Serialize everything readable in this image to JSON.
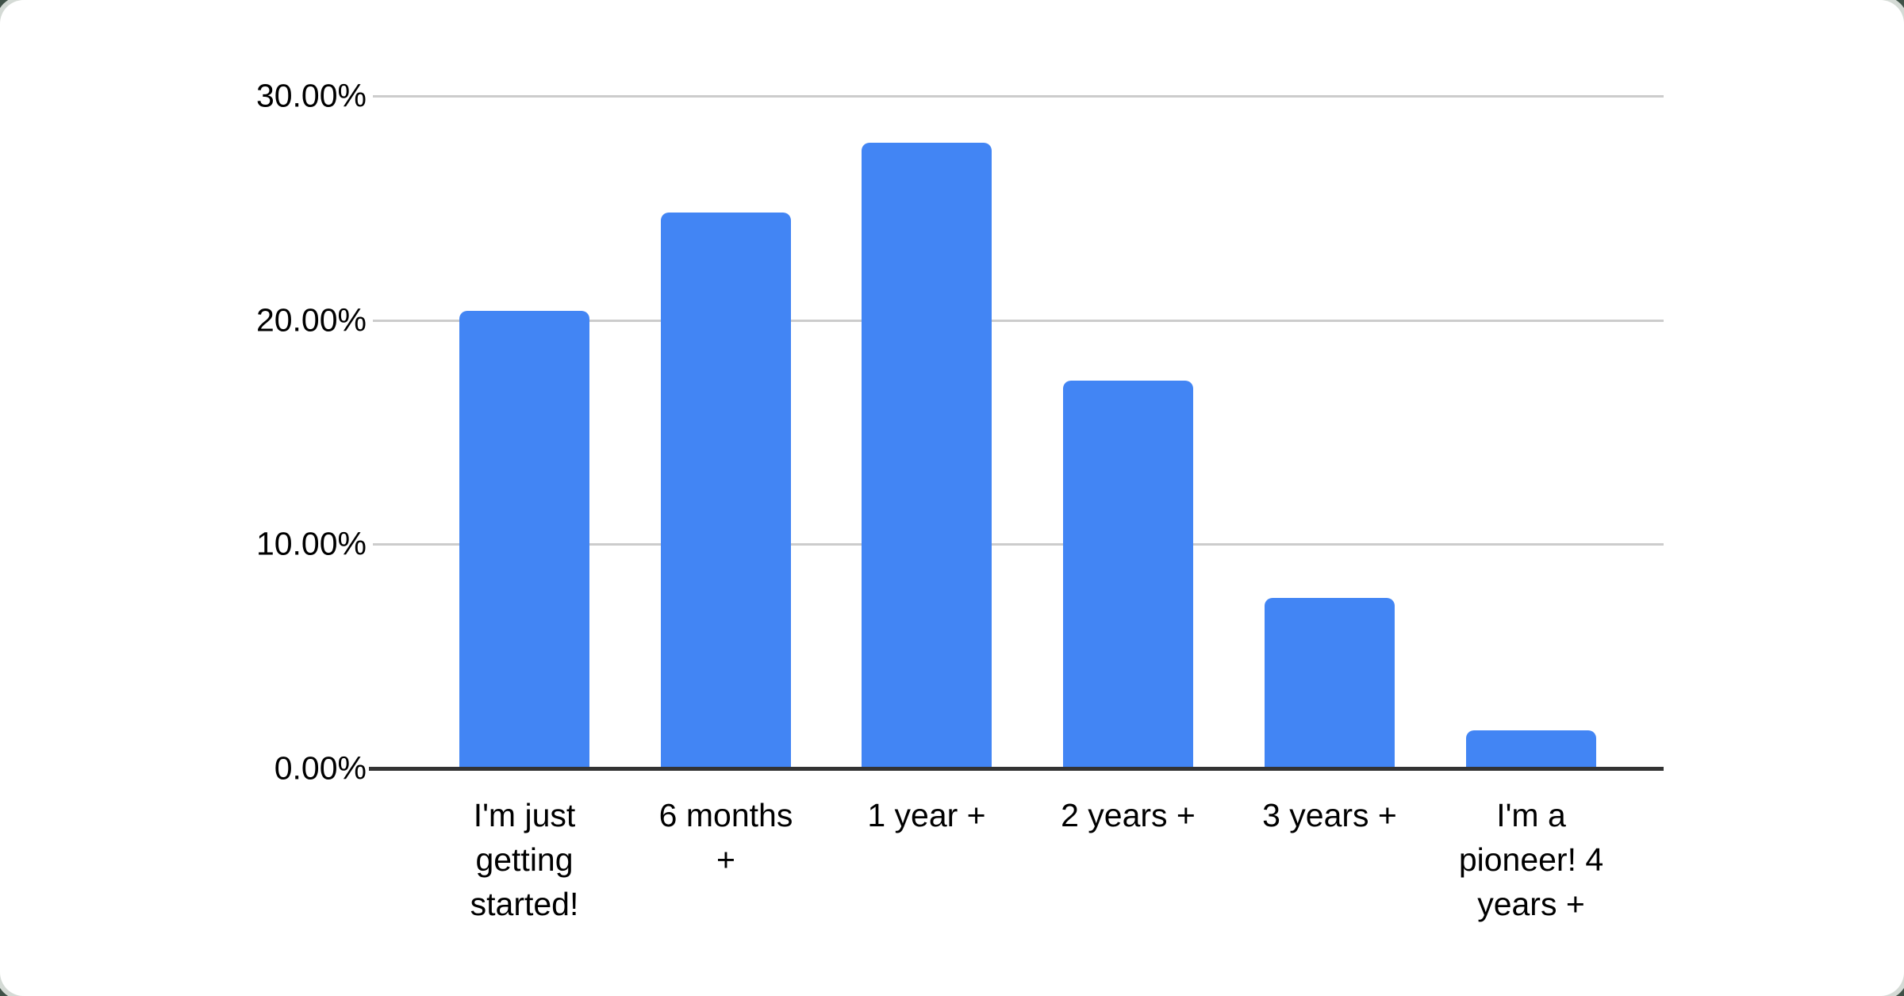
{
  "chart_data": {
    "type": "bar",
    "categories": [
      "I'm just getting started!",
      "6 months +",
      "1 year +",
      "2 years +",
      "3 years +",
      "I'm a pioneer! 4 years +"
    ],
    "values": [
      20.4,
      24.8,
      27.9,
      17.3,
      7.6,
      1.7
    ],
    "yticks": [
      {
        "value": 0,
        "label": "0.00%"
      },
      {
        "value": 10,
        "label": "10.00%"
      },
      {
        "value": 20,
        "label": "20.00%"
      },
      {
        "value": 30,
        "label": "30.00%"
      }
    ],
    "ylim": [
      0,
      30
    ],
    "title": "",
    "xlabel": "",
    "ylabel": "",
    "legend": null,
    "grid": "horizontal",
    "colors": {
      "bar": "#4285f4",
      "gridline": "#cccccc",
      "axis_line": "#333333",
      "text": "#000000",
      "card_background": "#ffffff",
      "card_rim": "#d4dad5",
      "page_background": "#3f5147"
    }
  }
}
